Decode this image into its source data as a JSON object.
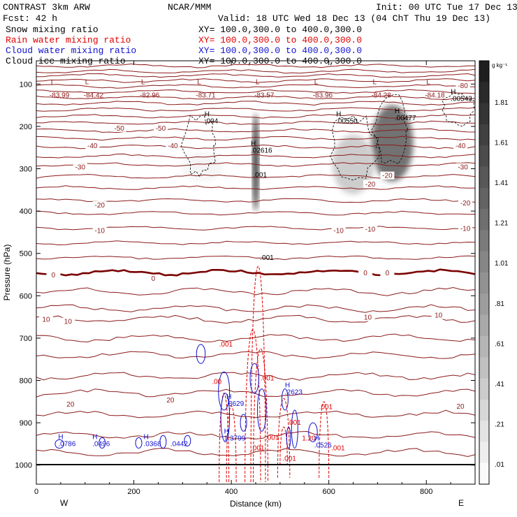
{
  "header": {
    "title": "CONTRAST  3km ARW",
    "center": "NCAR/MMM",
    "init": "Init: 00 UTC Tue 17 Dec 13",
    "fcst": "Fcst:   42 h",
    "valid": "Valid: 18 UTC Wed 18 Dec 13 (04 ChT Thu 19 Dec 13)"
  },
  "legend": [
    {
      "name": "Snow mixing ratio",
      "xy": "XY= 100.0,300.0 to 400.0,300.0",
      "color": "#000000"
    },
    {
      "name": "Rain water mixing ratio",
      "xy": "XY= 100.0,300.0 to 400.0,300.0",
      "color": "#e00000"
    },
    {
      "name": "Cloud water mixing ratio",
      "xy": "XY= 100.0,300.0 to 400.0,300.0",
      "color": "#1010d0"
    },
    {
      "name": "Cloud ice mixing ratio",
      "xy": "XY= 100.0,300.0 to 400.0,300.0",
      "color": "#000000"
    }
  ],
  "colorbar": {
    "unit": "g kg⁻¹",
    "labels": [
      "1.81",
      "1.61",
      "1.41",
      "1.21",
      "1.01",
      ".81",
      ".61",
      ".41",
      ".21",
      ".01"
    ]
  },
  "chart_data": {
    "type": "heatmap",
    "xlabel": "Distance (km)",
    "ylabel": "Pressure (hPa)",
    "xlim": [
      0,
      900
    ],
    "ylim": [
      1045,
      45
    ],
    "xticks": [
      "0",
      "200",
      "400",
      "600",
      "800"
    ],
    "xtick_values": [
      0,
      200,
      400,
      600,
      800
    ],
    "yticks": [
      "100",
      "200",
      "300",
      "400",
      "500",
      "600",
      "700",
      "800",
      "900",
      "1000"
    ],
    "ytick_values": [
      100,
      200,
      300,
      400,
      500,
      600,
      700,
      800,
      900,
      1000
    ],
    "x_end_labels": {
      "left": "W",
      "right": "E"
    },
    "temperature_contours": [
      {
        "p": 57,
        "label": "L",
        "note_labels": [
          {
            "x": 30,
            "p": 102,
            "text": "L"
          },
          {
            "x": 100,
            "p": 100,
            "text": "L"
          },
          {
            "x": 215,
            "p": 100,
            "text": "L"
          },
          {
            "x": 330,
            "p": 100,
            "text": "L"
          },
          {
            "x": 450,
            "p": 100,
            "text": "L"
          },
          {
            "x": 570,
            "p": 100,
            "text": "L"
          },
          {
            "x": 690,
            "p": 100,
            "text": "L"
          },
          {
            "x": 800,
            "p": 100,
            "text": "L"
          }
        ]
      }
    ],
    "low_values": [
      {
        "x": 30,
        "text": "-83.99"
      },
      {
        "x": 100,
        "text": "-84.42"
      },
      {
        "x": 215,
        "text": "-82.96"
      },
      {
        "x": 330,
        "text": "-83.71"
      },
      {
        "x": 450,
        "text": "-83.57"
      },
      {
        "x": 570,
        "text": "-83.96"
      },
      {
        "x": 690,
        "text": "-84.28"
      },
      {
        "x": 800,
        "text": "-84.18"
      }
    ],
    "isotherm_labels": [
      {
        "x": 875,
        "p": 108,
        "text": "-80"
      },
      {
        "x": 170,
        "p": 208,
        "text": "-50"
      },
      {
        "x": 255,
        "p": 208,
        "text": "-50"
      },
      {
        "x": 115,
        "p": 250,
        "text": "-40"
      },
      {
        "x": 280,
        "p": 250,
        "text": "-40"
      },
      {
        "x": 870,
        "p": 250,
        "text": "-40"
      },
      {
        "x": 90,
        "p": 300,
        "text": "-30"
      },
      {
        "x": 875,
        "p": 300,
        "text": "-30"
      },
      {
        "x": 720,
        "p": 320,
        "text": "-20"
      },
      {
        "x": 685,
        "p": 340,
        "text": "-20"
      },
      {
        "x": 130,
        "p": 390,
        "text": "-20"
      },
      {
        "x": 880,
        "p": 385,
        "text": "-20"
      },
      {
        "x": 130,
        "p": 450,
        "text": "-10"
      },
      {
        "x": 620,
        "p": 450,
        "text": "-10"
      },
      {
        "x": 685,
        "p": 447,
        "text": "-10"
      },
      {
        "x": 880,
        "p": 445,
        "text": "-10"
      },
      {
        "x": 35,
        "p": 555,
        "text": "0"
      },
      {
        "x": 240,
        "p": 563,
        "text": "0"
      },
      {
        "x": 675,
        "p": 550,
        "text": "0"
      },
      {
        "x": 720,
        "p": 550,
        "text": "0"
      },
      {
        "x": 20,
        "p": 660,
        "text": "10"
      },
      {
        "x": 65,
        "p": 665,
        "text": "10"
      },
      {
        "x": 680,
        "p": 655,
        "text": "10"
      },
      {
        "x": 825,
        "p": 650,
        "text": "10"
      },
      {
        "x": 70,
        "p": 860,
        "text": "20"
      },
      {
        "x": 275,
        "p": 850,
        "text": "20"
      },
      {
        "x": 870,
        "p": 865,
        "text": "20"
      }
    ],
    "maxima": [
      {
        "x": 345,
        "p": 193,
        "letter": "H",
        "value": ".004"
      },
      {
        "x": 440,
        "p": 262,
        "letter": "H",
        "value": ".02616"
      },
      {
        "x": 445,
        "p": 320,
        "letter": "",
        "value": ".001"
      },
      {
        "x": 615,
        "p": 193,
        "letter": "H",
        "value": ".00550"
      },
      {
        "x": 735,
        "p": 185,
        "letter": "H",
        "value": ".00477"
      },
      {
        "x": 850,
        "p": 140,
        "letter": "H",
        "value": ".00543"
      },
      {
        "x": 459,
        "p": 515,
        "letter": "",
        "value": ".001"
      },
      {
        "x": 375,
        "p": 720,
        "letter": "",
        "value": ".001"
      },
      {
        "x": 360,
        "p": 808,
        "letter": "",
        "value": ".00"
      },
      {
        "x": 460,
        "p": 800,
        "letter": "",
        "value": ".001"
      },
      {
        "x": 390,
        "p": 860,
        "letter": "H",
        "value": ".8629"
      },
      {
        "x": 510,
        "p": 833,
        "letter": "H",
        "value": ".2623"
      },
      {
        "x": 580,
        "p": 868,
        "letter": "",
        "value": ".001"
      },
      {
        "x": 515,
        "p": 905,
        "letter": "",
        "value": ".001"
      },
      {
        "x": 470,
        "p": 940,
        "letter": "",
        "value": ".001"
      },
      {
        "x": 440,
        "p": 965,
        "letter": "",
        "value": ".001"
      },
      {
        "x": 385,
        "p": 942,
        "letter": "H",
        "value": "1.3799"
      },
      {
        "x": 545,
        "p": 942,
        "letter": "",
        "value": "1.20"
      },
      {
        "x": 570,
        "p": 958,
        "letter": "H",
        "value": ".0526"
      },
      {
        "x": 605,
        "p": 965,
        "letter": "",
        "value": ".001"
      },
      {
        "x": 505,
        "p": 990,
        "letter": "",
        "value": ".001"
      },
      {
        "x": 45,
        "p": 955,
        "letter": "H",
        "value": ".0786"
      },
      {
        "x": 115,
        "p": 955,
        "letter": "H",
        "value": ".0496"
      },
      {
        "x": 220,
        "p": 955,
        "letter": "H",
        "value": ".0368"
      },
      {
        "x": 275,
        "p": 955,
        "letter": "",
        "value": ".0442"
      }
    ],
    "shaded_regions": [
      {
        "x": 450,
        "p_top": 170,
        "p_bottom": 400,
        "max": 1.85
      },
      {
        "x": 730,
        "p_top": 150,
        "p_bottom": 330,
        "max": 1.4
      },
      {
        "x": 650,
        "p_top": 220,
        "p_bottom": 360,
        "max": 0.5
      },
      {
        "x": 340,
        "p_top": 260,
        "p_bottom": 330,
        "max": 0.1
      }
    ]
  }
}
